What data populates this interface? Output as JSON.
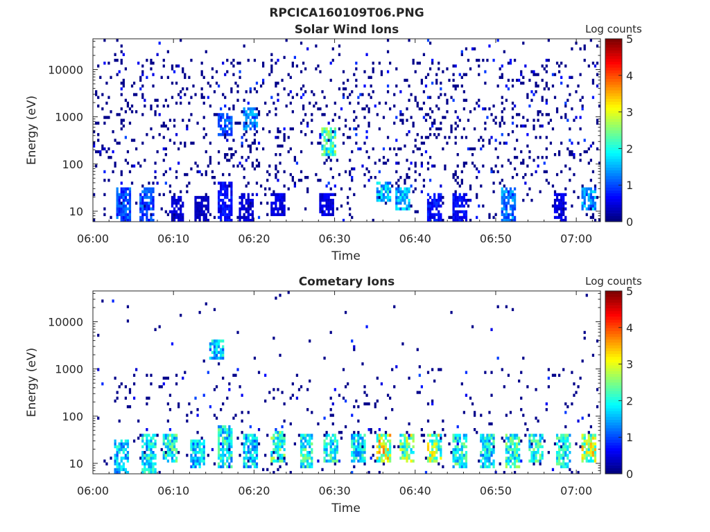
{
  "figure_title": "RPCICA160109T06.PNG",
  "chart_data": [
    {
      "type": "heatmap",
      "title": "Solar Wind Ions",
      "xlabel": "Time",
      "ylabel": "Energy (eV)",
      "x_tick_labels": [
        "06:00",
        "06:10",
        "06:20",
        "06:30",
        "06:40",
        "06:50",
        "07:00"
      ],
      "x_range_minutes": [
        0,
        63
      ],
      "y_scale": "log",
      "y_tick_values": [
        10,
        100,
        1000,
        10000
      ],
      "y_tick_labels": [
        "10",
        "100",
        "1000",
        "10000"
      ],
      "y_range": [
        6,
        45000
      ],
      "colorbar": {
        "label": "Log counts",
        "range": [
          0,
          5
        ],
        "tick_labels": [
          "0",
          "1",
          "2",
          "3",
          "4",
          "5"
        ],
        "colormap": "jet"
      },
      "features": [
        {
          "t": 3.8,
          "e_min": 6,
          "e_max": 30,
          "level": 1.2
        },
        {
          "t": 6.8,
          "e_min": 6,
          "e_max": 30,
          "level": 1.2
        },
        {
          "t": 10.5,
          "e_min": 6,
          "e_max": 20,
          "level": 0.5
        },
        {
          "t": 13.5,
          "e_min": 6,
          "e_max": 20,
          "level": 0.4
        },
        {
          "t": 16.5,
          "e_min": 6,
          "e_max": 40,
          "level": 0.8
        },
        {
          "t": 19.0,
          "e_min": 6,
          "e_max": 25,
          "level": 0.5
        },
        {
          "t": 23.0,
          "e_min": 8,
          "e_max": 25,
          "level": 0.6
        },
        {
          "t": 29.2,
          "e_min": 150,
          "e_max": 600,
          "level": 2.7
        },
        {
          "t": 29.0,
          "e_min": 8,
          "e_max": 25,
          "level": 0.6
        },
        {
          "t": 36.0,
          "e_min": 15,
          "e_max": 40,
          "level": 2.0
        },
        {
          "t": 38.5,
          "e_min": 10,
          "e_max": 30,
          "level": 1.8
        },
        {
          "t": 42.5,
          "e_min": 6,
          "e_max": 25,
          "level": 0.8
        },
        {
          "t": 45.5,
          "e_min": 6,
          "e_max": 25,
          "level": 0.8
        },
        {
          "t": 51.5,
          "e_min": 6,
          "e_max": 30,
          "level": 1.5
        },
        {
          "t": 58.0,
          "e_min": 6,
          "e_max": 25,
          "level": 0.6
        },
        {
          "t": 61.5,
          "e_min": 10,
          "e_max": 30,
          "level": 1.7
        },
        {
          "t": 19.5,
          "e_min": 500,
          "e_max": 1500,
          "level": 1.5
        },
        {
          "t": 16.5,
          "e_min": 400,
          "e_max": 1200,
          "level": 1.3
        }
      ]
    },
    {
      "type": "heatmap",
      "title": "Cometary Ions",
      "xlabel": "Time",
      "ylabel": "Energy (eV)",
      "x_tick_labels": [
        "06:00",
        "06:10",
        "06:20",
        "06:30",
        "06:40",
        "06:50",
        "07:00"
      ],
      "x_range_minutes": [
        0,
        63
      ],
      "y_scale": "log",
      "y_tick_values": [
        10,
        100,
        1000,
        10000
      ],
      "y_tick_labels": [
        "10",
        "100",
        "1000",
        "10000"
      ],
      "y_range": [
        6,
        45000
      ],
      "colorbar": {
        "label": "Log counts",
        "range": [
          0,
          5
        ],
        "tick_labels": [
          "0",
          "1",
          "2",
          "3",
          "4",
          "5"
        ],
        "colormap": "jet"
      },
      "features": [
        {
          "t": 3.5,
          "e_min": 6,
          "e_max": 30,
          "level": 2.0
        },
        {
          "t": 7.0,
          "e_min": 6,
          "e_max": 40,
          "level": 2.2
        },
        {
          "t": 9.5,
          "e_min": 10,
          "e_max": 40,
          "level": 2.4
        },
        {
          "t": 13.0,
          "e_min": 8,
          "e_max": 30,
          "level": 2.0
        },
        {
          "t": 16.5,
          "e_min": 8,
          "e_max": 60,
          "level": 2.3
        },
        {
          "t": 15.3,
          "e_min": 1500,
          "e_max": 4000,
          "level": 2.0
        },
        {
          "t": 19.5,
          "e_min": 8,
          "e_max": 40,
          "level": 2.0
        },
        {
          "t": 23.0,
          "e_min": 10,
          "e_max": 50,
          "level": 2.6
        },
        {
          "t": 26.5,
          "e_min": 8,
          "e_max": 40,
          "level": 2.4
        },
        {
          "t": 29.5,
          "e_min": 10,
          "e_max": 45,
          "level": 2.3
        },
        {
          "t": 33.0,
          "e_min": 10,
          "e_max": 40,
          "level": 2.2
        },
        {
          "t": 36.0,
          "e_min": 10,
          "e_max": 40,
          "level": 3.5
        },
        {
          "t": 39.0,
          "e_min": 10,
          "e_max": 40,
          "level": 3.0
        },
        {
          "t": 42.5,
          "e_min": 10,
          "e_max": 40,
          "level": 3.1
        },
        {
          "t": 45.5,
          "e_min": 8,
          "e_max": 40,
          "level": 2.4
        },
        {
          "t": 49.0,
          "e_min": 8,
          "e_max": 40,
          "level": 2.2
        },
        {
          "t": 52.0,
          "e_min": 8,
          "e_max": 40,
          "level": 2.5
        },
        {
          "t": 55.0,
          "e_min": 10,
          "e_max": 40,
          "level": 2.4
        },
        {
          "t": 58.5,
          "e_min": 8,
          "e_max": 40,
          "level": 2.3
        },
        {
          "t": 61.5,
          "e_min": 10,
          "e_max": 40,
          "level": 3.3
        }
      ]
    }
  ]
}
